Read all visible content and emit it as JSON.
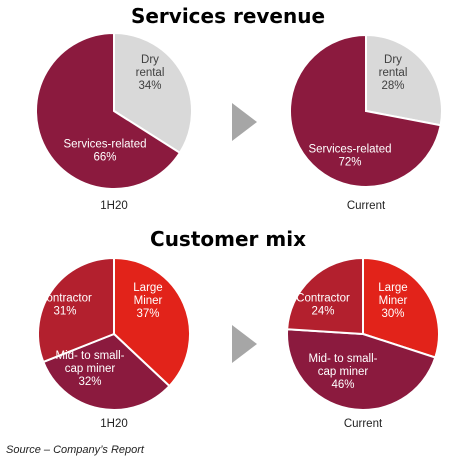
{
  "sections": {
    "services_title": "Services revenue",
    "customer_title": "Customer mix"
  },
  "source": "Source – Company’s Report",
  "arrow_color": "#a6a6a6",
  "chart_data": [
    {
      "type": "pie",
      "title": "",
      "caption": "1H20",
      "slices": [
        {
          "label": [
            "Dry",
            "rental",
            "34%"
          ],
          "value": 34,
          "color": "#d9d9d9",
          "text_color": "#404040"
        },
        {
          "label": [
            "Services-related",
            "66%"
          ],
          "value": 66,
          "color": "#8b1a3e",
          "text_color": "#ffffff"
        }
      ]
    },
    {
      "type": "pie",
      "title": "",
      "caption": "Current",
      "slices": [
        {
          "label": [
            "Dry",
            "rental",
            "28%"
          ],
          "value": 28,
          "color": "#d9d9d9",
          "text_color": "#404040"
        },
        {
          "label": [
            "Services-related",
            "72%"
          ],
          "value": 72,
          "color": "#8b1a3e",
          "text_color": "#ffffff"
        }
      ]
    },
    {
      "type": "pie",
      "title": "",
      "caption": "1H20",
      "slices": [
        {
          "label": [
            "Large",
            "Miner",
            "37%"
          ],
          "value": 37,
          "color": "#e2231a",
          "text_color": "#ffffff"
        },
        {
          "label": [
            "Mid- to small-",
            "cap miner",
            "32%"
          ],
          "value": 32,
          "color": "#8b1a3e",
          "text_color": "#ffffff"
        },
        {
          "label": [
            "Contractor",
            "31%"
          ],
          "value": 31,
          "color": "#b3202e",
          "text_color": "#ffffff"
        }
      ]
    },
    {
      "type": "pie",
      "title": "",
      "caption": "Current",
      "slices": [
        {
          "label": [
            "Large",
            "Miner",
            "30%"
          ],
          "value": 30,
          "color": "#e2231a",
          "text_color": "#ffffff"
        },
        {
          "label": [
            "Mid- to small-",
            "cap miner",
            "46%"
          ],
          "value": 46,
          "color": "#8b1a3e",
          "text_color": "#ffffff"
        },
        {
          "label": [
            "Contractor",
            "24%"
          ],
          "value": 24,
          "color": "#b3202e",
          "text_color": "#ffffff"
        }
      ]
    }
  ]
}
